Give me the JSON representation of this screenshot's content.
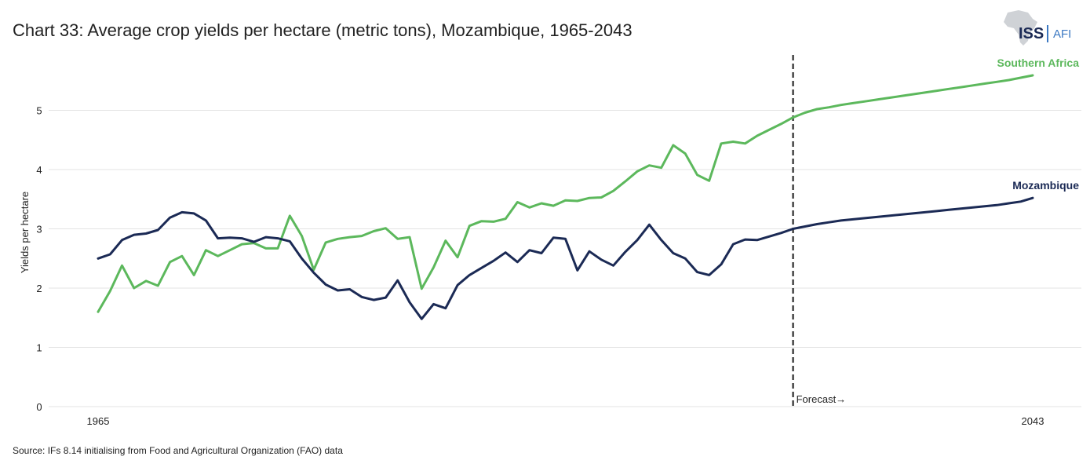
{
  "title": "Chart 33: Average crop yields per hectare (metric tons), Mozambique, 1965-2043",
  "source": "Source: IFs 8.14 initialising from Food and Agricultural Organization (FAO) data",
  "logo": {
    "iss": "ISS",
    "afi": "AFI",
    "accent": "#3b78c2",
    "brand": "#1b2a55"
  },
  "chart_data": {
    "type": "line",
    "title": "Chart 33: Average crop yields per hectare (metric tons), Mozambique, 1965-2043",
    "xlabel": "",
    "ylabel": "Yields per hectare",
    "xlim": [
      1965,
      2043
    ],
    "ylim": [
      0,
      5.8
    ],
    "x_ticks": [
      1965,
      2043
    ],
    "y_ticks": [
      0,
      1,
      2,
      3,
      4,
      5
    ],
    "grid": "horizontal",
    "forecast_year": 2023,
    "forecast_label": "Forecast→",
    "x": [
      1965,
      1966,
      1967,
      1968,
      1969,
      1970,
      1971,
      1972,
      1973,
      1974,
      1975,
      1976,
      1977,
      1978,
      1979,
      1980,
      1981,
      1982,
      1983,
      1984,
      1985,
      1986,
      1987,
      1988,
      1989,
      1990,
      1991,
      1992,
      1993,
      1994,
      1995,
      1996,
      1997,
      1998,
      1999,
      2000,
      2001,
      2002,
      2003,
      2004,
      2005,
      2006,
      2007,
      2008,
      2009,
      2010,
      2011,
      2012,
      2013,
      2014,
      2015,
      2016,
      2017,
      2018,
      2019,
      2020,
      2021,
      2022,
      2023,
      2024,
      2025,
      2026,
      2027,
      2028,
      2029,
      2030,
      2031,
      2032,
      2033,
      2034,
      2035,
      2036,
      2037,
      2038,
      2039,
      2040,
      2041,
      2042,
      2043
    ],
    "series": [
      {
        "name": "Southern Africa",
        "color": "#5cb85c",
        "values": [
          1.6,
          1.95,
          2.38,
          2.0,
          2.12,
          2.04,
          2.44,
          2.54,
          2.22,
          2.64,
          2.54,
          2.64,
          2.74,
          2.76,
          2.67,
          2.67,
          3.22,
          2.88,
          2.31,
          2.77,
          2.83,
          2.86,
          2.88,
          2.96,
          3.01,
          2.83,
          2.86,
          1.99,
          2.35,
          2.8,
          2.52,
          3.05,
          3.13,
          3.12,
          3.17,
          3.45,
          3.36,
          3.43,
          3.39,
          3.48,
          3.47,
          3.52,
          3.53,
          3.64,
          3.8,
          3.97,
          4.07,
          4.03,
          4.41,
          4.27,
          3.91,
          3.81,
          4.44,
          4.47,
          4.44,
          4.57,
          4.67,
          4.77,
          4.88,
          4.96,
          5.02,
          5.05,
          5.09,
          5.12,
          5.15,
          5.18,
          5.21,
          5.24,
          5.27,
          5.3,
          5.33,
          5.36,
          5.39,
          5.42,
          5.45,
          5.48,
          5.51,
          5.55,
          5.59
        ]
      },
      {
        "name": "Mozambique",
        "color": "#1b2a55",
        "values": [
          2.5,
          2.57,
          2.81,
          2.9,
          2.92,
          2.98,
          3.19,
          3.28,
          3.26,
          3.14,
          2.84,
          2.85,
          2.84,
          2.78,
          2.86,
          2.84,
          2.79,
          2.5,
          2.26,
          2.06,
          1.96,
          1.98,
          1.85,
          1.8,
          1.84,
          2.13,
          1.76,
          1.48,
          1.73,
          1.66,
          2.05,
          2.22,
          2.34,
          2.46,
          2.6,
          2.44,
          2.64,
          2.59,
          2.85,
          2.83,
          2.3,
          2.62,
          2.48,
          2.38,
          2.61,
          2.81,
          3.07,
          2.81,
          2.59,
          2.5,
          2.27,
          2.22,
          2.4,
          2.74,
          2.82,
          2.81,
          2.87,
          2.93,
          3.0,
          3.04,
          3.08,
          3.11,
          3.14,
          3.16,
          3.18,
          3.2,
          3.22,
          3.24,
          3.26,
          3.28,
          3.3,
          3.32,
          3.34,
          3.36,
          3.38,
          3.4,
          3.43,
          3.46,
          3.52
        ]
      }
    ]
  }
}
